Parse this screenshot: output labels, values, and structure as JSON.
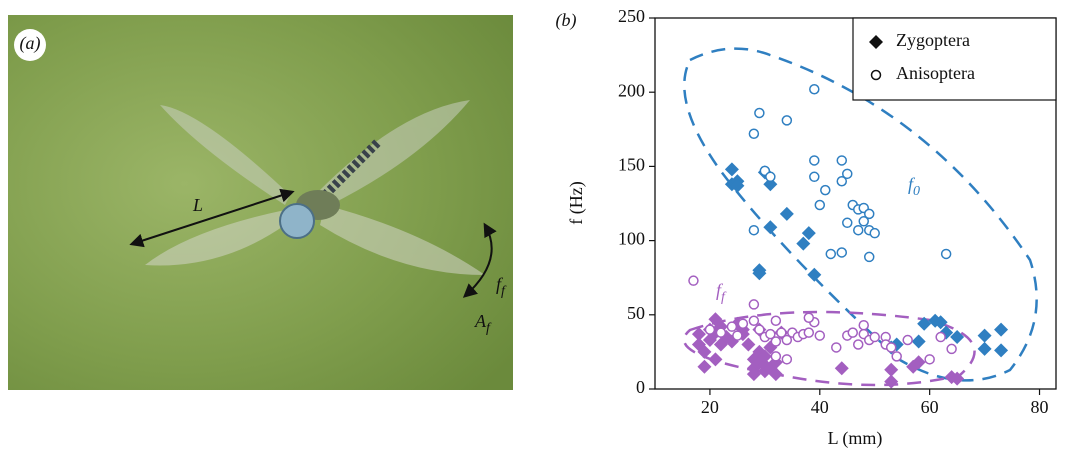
{
  "photo_panel": {
    "label": "(a)",
    "length_label": "L",
    "freq_label": "f",
    "freq_sub": "f",
    "amp_label": "A",
    "amp_sub": "f"
  },
  "chart_data": {
    "type": "scatter",
    "panel_label": "(b)",
    "x_label": "L (mm)",
    "y_label": "f (Hz)",
    "xlim": [
      10,
      83
    ],
    "xticks": [
      20,
      40,
      60,
      80
    ],
    "ylim": [
      0,
      250
    ],
    "yticks": [
      0,
      50,
      100,
      150,
      200,
      250
    ],
    "legend_position": "upper right",
    "legend": [
      {
        "name": "Zygoptera",
        "marker": "diamond"
      },
      {
        "name": "Anisoptera",
        "marker": "circle"
      }
    ],
    "annotations": [
      {
        "text": "f",
        "subscript": "0",
        "color": "#2f7fc1"
      },
      {
        "text": "f",
        "subscript": "f",
        "color": "#a35fc0"
      }
    ],
    "series": [
      {
        "marker": "diamond",
        "color": "#2f7fc1",
        "x": [
          24,
          24,
          25,
          25,
          30,
          31,
          31,
          34,
          37,
          38,
          39,
          29,
          29,
          53,
          54,
          58,
          59,
          61,
          62,
          63,
          65,
          70,
          70,
          73,
          73
        ],
        "y": [
          148,
          138,
          140,
          137,
          146,
          138,
          109,
          118,
          98,
          105,
          77,
          80,
          78,
          28,
          30,
          32,
          44,
          46,
          45,
          38,
          35,
          36,
          27,
          40,
          26
        ]
      },
      {
        "marker": "circle",
        "color": "#2f7fc1",
        "x": [
          29,
          28,
          34,
          39,
          30,
          31,
          28,
          39,
          39,
          41,
          40,
          44,
          44,
          45,
          46,
          47,
          48,
          49,
          45,
          48,
          47,
          49,
          44,
          42,
          49,
          63,
          50
        ],
        "y": [
          186,
          172,
          181,
          202,
          147,
          143,
          107,
          154,
          143,
          134,
          124,
          154,
          140,
          145,
          124,
          121,
          122,
          118,
          112,
          113,
          107,
          107,
          92,
          91,
          89,
          91,
          105
        ]
      },
      {
        "marker": "diamond",
        "color": "#a35fc0",
        "x": [
          18,
          18,
          19,
          19,
          20,
          20,
          21,
          21,
          21,
          22,
          22,
          23,
          24,
          25,
          26,
          26,
          27,
          28,
          28,
          28,
          29,
          29,
          29,
          30,
          30,
          30,
          31,
          31,
          32,
          32,
          33,
          44,
          53,
          53,
          57,
          58,
          64,
          65
        ],
        "y": [
          37,
          30,
          15,
          25,
          40,
          33,
          47,
          38,
          20,
          30,
          42,
          35,
          32,
          44,
          40,
          37,
          30,
          20,
          14,
          10,
          18,
          25,
          40,
          12,
          16,
          22,
          28,
          14,
          18,
          10,
          38,
          14,
          5,
          13,
          15,
          18,
          8,
          7
        ]
      },
      {
        "marker": "circle",
        "color": "#a35fc0",
        "x": [
          17,
          20,
          22,
          24,
          25,
          26,
          28,
          28,
          29,
          30,
          31,
          32,
          32,
          33,
          34,
          35,
          36,
          37,
          38,
          39,
          40,
          38,
          43,
          45,
          46,
          47,
          48,
          48,
          49,
          50,
          52,
          52,
          53,
          54,
          56,
          60,
          62,
          64,
          32,
          34
        ],
        "y": [
          73,
          40,
          38,
          42,
          36,
          44,
          57,
          46,
          40,
          35,
          37,
          46,
          32,
          38,
          33,
          38,
          35,
          37,
          38,
          45,
          36,
          48,
          28,
          36,
          38,
          30,
          43,
          37,
          33,
          35,
          35,
          30,
          28,
          22,
          33,
          20,
          35,
          27,
          22,
          20
        ]
      }
    ]
  }
}
